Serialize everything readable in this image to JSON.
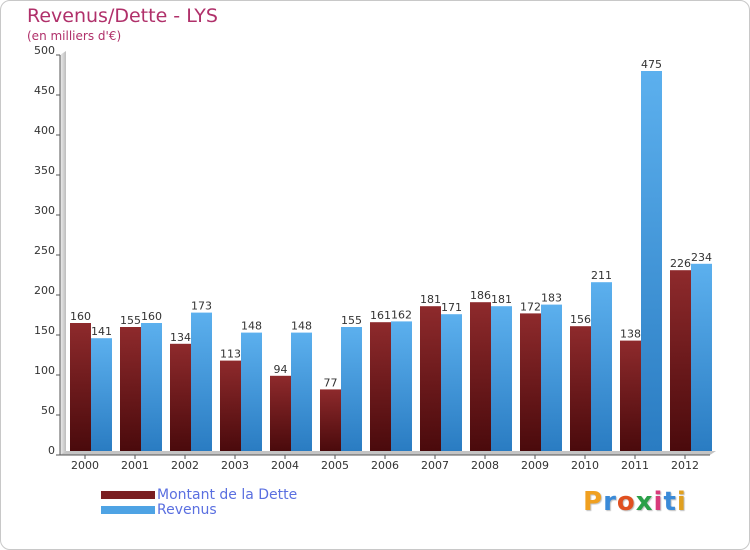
{
  "chart_data": {
    "type": "bar",
    "title": "Revenus/Dette - LYS",
    "subtitle": "(en milliers d'€)",
    "categories": [
      "2000",
      "2001",
      "2002",
      "2003",
      "2004",
      "2005",
      "2006",
      "2007",
      "2008",
      "2009",
      "2010",
      "2011",
      "2012"
    ],
    "series": [
      {
        "name": "Montant de la Dette",
        "values": [
          160,
          155,
          134,
          113,
          94,
          77,
          161,
          181,
          186,
          172,
          156,
          138,
          226
        ],
        "color": "#7a1f22"
      },
      {
        "name": "Revenus",
        "values": [
          141,
          160,
          173,
          148,
          148,
          155,
          162,
          171,
          181,
          183,
          211,
          475,
          234
        ],
        "color": "#4ea3e4"
      }
    ],
    "ylim": [
      0,
      500
    ],
    "yticks": [
      0,
      50,
      100,
      150,
      200,
      250,
      300,
      350,
      400,
      450,
      500
    ],
    "grid": false,
    "legend_position": "bottom-left"
  },
  "logo": {
    "letters": [
      "P",
      "r",
      "o",
      "x",
      "i",
      "t",
      "i"
    ],
    "colors": [
      "#f0a020",
      "#3a8ad8",
      "#e05020",
      "#2aa048",
      "#d83a7a",
      "#3a8ad8",
      "#e0a020"
    ]
  }
}
